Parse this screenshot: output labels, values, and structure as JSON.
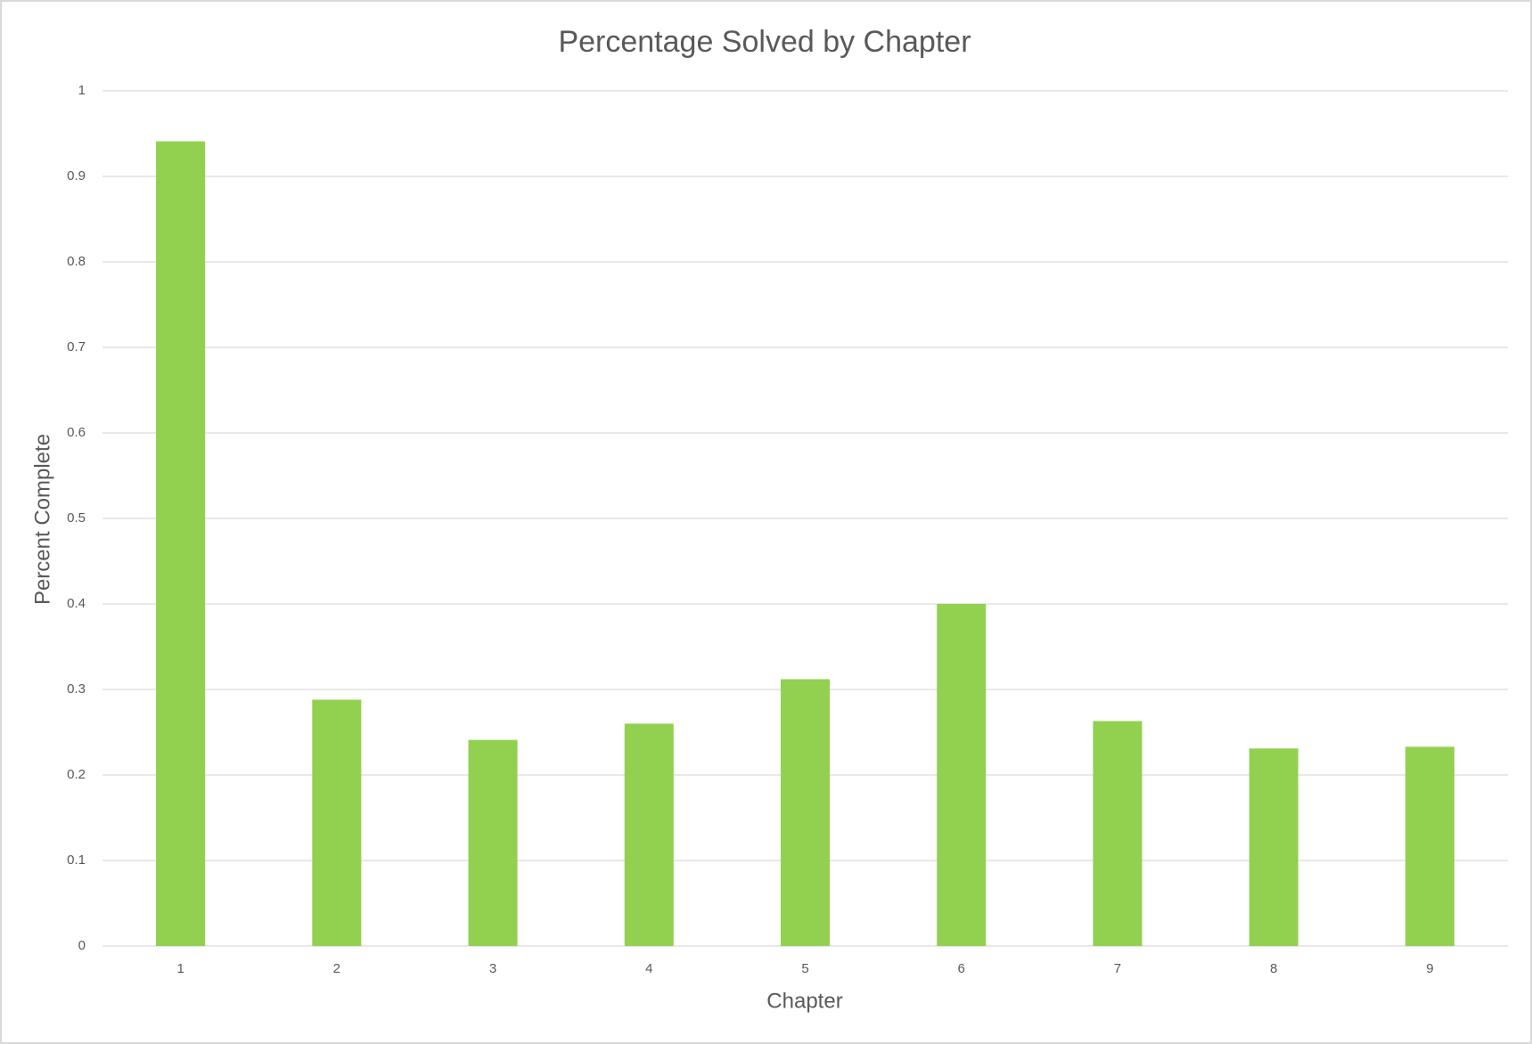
{
  "chart_data": {
    "type": "bar",
    "title": "Percentage Solved by Chapter",
    "x_label": "Chapter",
    "y_label": "Percent Complete",
    "categories": [
      "1",
      "2",
      "3",
      "4",
      "5",
      "6",
      "7",
      "8",
      "9"
    ],
    "values": [
      0.941,
      0.288,
      0.241,
      0.26,
      0.312,
      0.4,
      0.263,
      0.231,
      0.233
    ],
    "color": "#92d050",
    "ylim": [
      0,
      1
    ],
    "yticks": [
      0,
      0.1,
      0.2,
      0.3,
      0.4,
      0.5,
      0.6,
      0.7,
      0.8,
      0.9,
      1
    ],
    "grid": true
  }
}
